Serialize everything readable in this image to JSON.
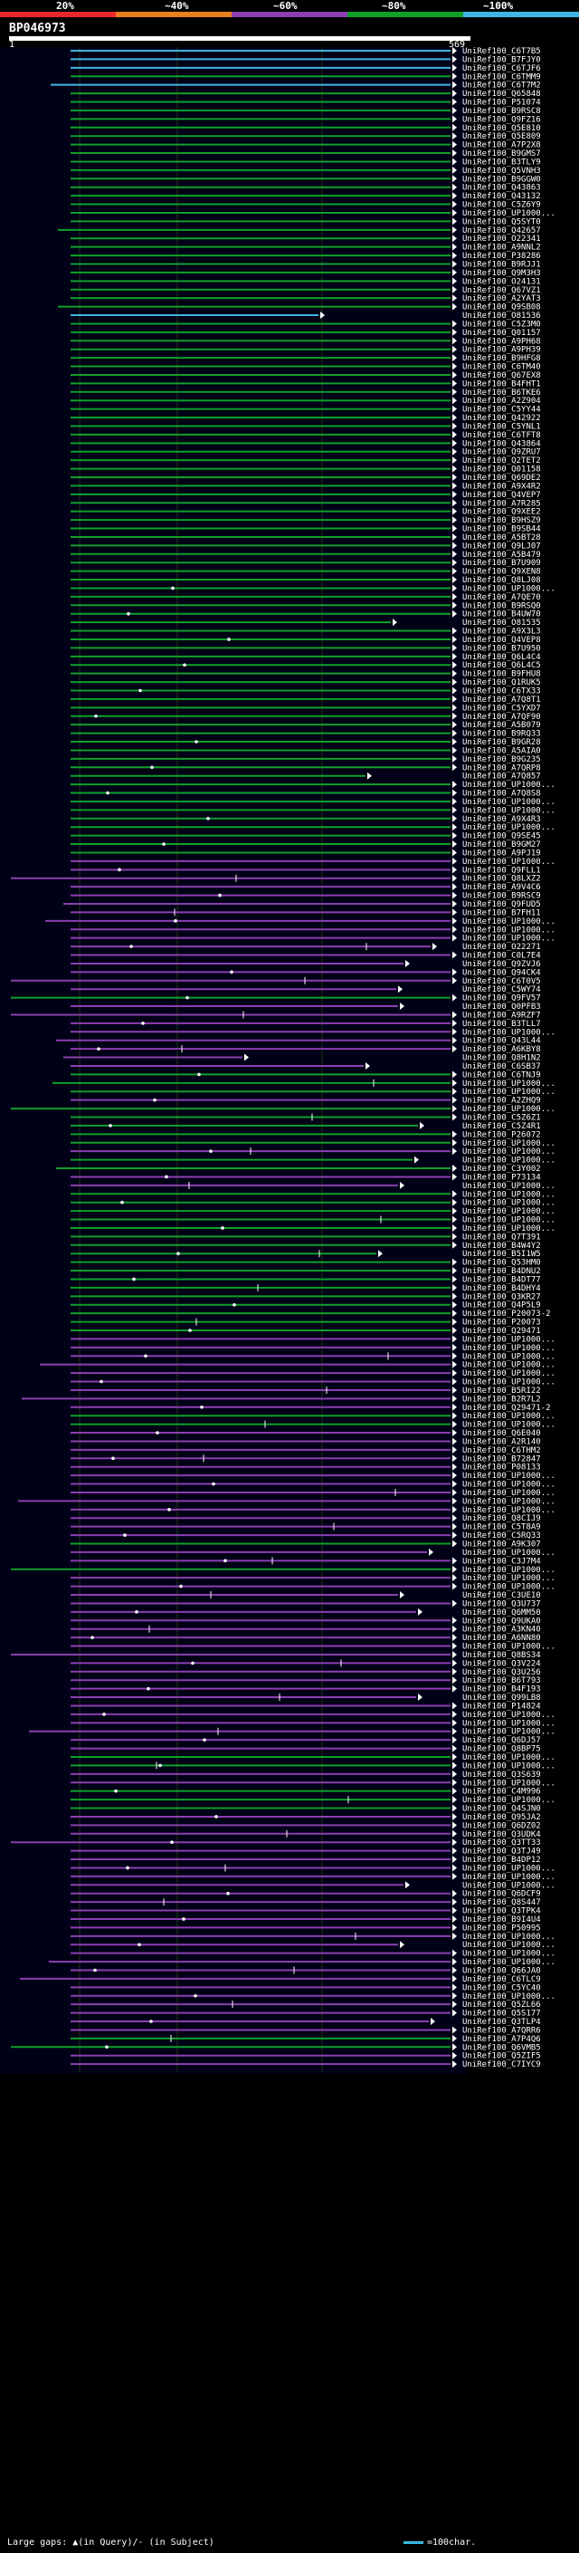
{
  "legend": {
    "labels": [
      "20%",
      "~40%",
      "~60%",
      "~80%",
      "~100%"
    ],
    "colors": [
      "#e8272d",
      "#e7801d",
      "#8b3fb0",
      "#10a02a",
      "#3fb6e4"
    ]
  },
  "query": {
    "title": "BP046973",
    "start": "1",
    "end": "569"
  },
  "hits": [
    "UniRef100_C6T7B5",
    "UniRef100_B7FJY0",
    "UniRef100_C6TJF6",
    "UniRef100_C6TMM9",
    "UniRef100_C6T7M2",
    "UniRef100_Q65848",
    "UniRef100_P51074",
    "UniRef100_B9RSC8",
    "UniRef100_Q9FZ16",
    "UniRef100_Q5E810",
    "UniRef100_Q5E809",
    "UniRef100_A7P2X8",
    "UniRef100_B9GMS7",
    "UniRef100_B3TLY9",
    "UniRef100_Q5VNH3",
    "UniRef100_B9GGW0",
    "UniRef100_Q43863",
    "UniRef100_Q43132",
    "UniRef100_C5Z6Y9",
    "UniRef100_UP1000...",
    "UniRef100_Q5SYT0",
    "UniRef100_Q42657",
    "UniRef100_O22341",
    "UniRef100_A9NNL2",
    "UniRef100_P38286",
    "UniRef100_B9RJJ1",
    "UniRef100_Q9M3H3",
    "UniRef100_O24131",
    "UniRef100_Q67VZ1",
    "UniRef100_A2YAT3",
    "UniRef100_Q9SB08",
    "UniRef100_O81536",
    "UniRef100_C5Z3M0",
    "UniRef100_Q01157",
    "UniRef100_A9PH68",
    "UniRef100_A9PH39",
    "UniRef100_B9HFG8",
    "UniRef100_C6TM40",
    "UniRef100_Q67EX8",
    "UniRef100_B4FHT1",
    "UniRef100_B6TKE6",
    "UniRef100_A2Z904",
    "UniRef100_C5YY44",
    "UniRef100_Q42922",
    "UniRef100_C5YNL1",
    "UniRef100_C6TFT8",
    "UniRef100_Q43864",
    "UniRef100_Q9ZRU7",
    "UniRef100_Q2TET2",
    "UniRef100_Q01158",
    "UniRef100_Q69DE2",
    "UniRef100_A9X4R2",
    "UniRef100_Q4VEP7",
    "UniRef100_A7R285",
    "UniRef100_Q9XEE2",
    "UniRef100_B9HSZ9",
    "UniRef100_B9SB44",
    "UniRef100_A5BT28",
    "UniRef100_Q9LJ07",
    "UniRef100_A5B479",
    "UniRef100_B7U909",
    "UniRef100_Q9XEN8",
    "UniRef100_Q8LJ08",
    "UniRef100_UP1000...",
    "UniRef100_A7QE70",
    "UniRef100_B9RSQ0",
    "UniRef100_B4UW70",
    "UniRef100_O81535",
    "UniRef100_A9X3L3",
    "UniRef100_Q4VEP8",
    "UniRef100_B7U950",
    "UniRef100_Q6L4C4",
    "UniRef100_Q6L4C5",
    "UniRef100_B9FHU8",
    "UniRef100_Q1RUK5",
    "UniRef100_C6TX33",
    "UniRef100_A7Q8T1",
    "UniRef100_C5YXD7",
    "UniRef100_A7QF90",
    "UniRef100_A5B079",
    "UniRef100_B9RQ33",
    "UniRef100_B9GR28",
    "UniRef100_A5AIA0",
    "UniRef100_B9G235",
    "UniRef100_A7QRP8",
    "UniRef100_A7Q857",
    "UniRef100_UP1000...",
    "UniRef100_A7Q8S8",
    "UniRef100_UP1000...",
    "UniRef100_UP1000...",
    "UniRef100_A9X4R3",
    "UniRef100_UP1000...",
    "UniRef100_Q9SE45",
    "UniRef100_B9GM27",
    "UniRef100_A9PJ19",
    "UniRef100_UP1000...",
    "UniRef100_Q9FLL1",
    "UniRef100_Q8LXZ2",
    "UniRef100_A9V4C6",
    "UniRef100_B9RSC9",
    "UniRef100_Q9FUD5",
    "UniRef100_B7FH11",
    "UniRef100_UP1000...",
    "UniRef100_UP1000...",
    "UniRef100_UP1000...",
    "UniRef100_O22271",
    "UniRef100_C0L7E4",
    "UniRef100_Q9ZVJ6",
    "UniRef100_Q94CK4",
    "UniRef100_C6T0V5",
    "UniRef100_C5WY74",
    "UniRef100_Q9FV57",
    "UniRef100_Q0PFB3",
    "UniRef100_A9RZF7",
    "UniRef100_B3TLL7",
    "UniRef100_UP1000...",
    "UniRef100_Q43L44",
    "UniRef100_A6KBY8",
    "UniRef100_Q8H1N2",
    "UniRef100_C6SB37",
    "UniRef100_C6TNJ9",
    "UniRef100_UP1000...",
    "UniRef100_UP1000...",
    "UniRef100_A2ZHQ9",
    "UniRef100_UP1000...",
    "UniRef100_C5Z6Z1",
    "UniRef100_C5Z4R1",
    "UniRef100_P26072",
    "UniRef100_UP1000...",
    "UniRef100_UP1000...",
    "UniRef100_UP1000...",
    "UniRef100_C3Y002",
    "UniRef100_P73134",
    "UniRef100_UP1000...",
    "UniRef100_UP1000...",
    "UniRef100_UP1000...",
    "UniRef100_UP1000...",
    "UniRef100_UP1000...",
    "UniRef100_UP1000...",
    "UniRef100_Q7T391",
    "UniRef100_B4W4Y2",
    "UniRef100_B5I1W5",
    "UniRef100_Q53HM0",
    "UniRef100_B4DNU2",
    "UniRef100_B4DT77",
    "UniRef100_B4DHY4",
    "UniRef100_Q3KR27",
    "UniRef100_Q4P5L9",
    "UniRef100_P20073-2",
    "UniRef100_P20073",
    "UniRef100_Q29471",
    "UniRef100_UP1000...",
    "UniRef100_UP1000...",
    "UniRef100_UP1000...",
    "UniRef100_UP1000...",
    "UniRef100_UP1000...",
    "UniRef100_UP1000...",
    "UniRef100_B5RI22",
    "UniRef100_B2R7L2",
    "UniRef100_Q29471-2",
    "UniRef100_UP1000...",
    "UniRef100_UP1000...",
    "UniRef100_Q6E040",
    "UniRef100_A2R140",
    "UniRef100_C6THM2",
    "UniRef100_B72847",
    "UniRef100_P08133",
    "UniRef100_UP1000...",
    "UniRef100_UP1000...",
    "UniRef100_UP1000...",
    "UniRef100_UP1000...",
    "UniRef100_UP1000...",
    "UniRef100_Q8CIJ9",
    "UniRef100_C5T8A9",
    "UniRef100_C5RQ33",
    "UniRef100_A9K307",
    "UniRef100_UP1000...",
    "UniRef100_C3J7M4",
    "UniRef100_UP1000...",
    "UniRef100_UP1000...",
    "UniRef100_UP1000...",
    "UniRef100_C3UE10",
    "UniRef100_Q3U737",
    "UniRef100_Q6MM50",
    "UniRef100_Q9UKA0",
    "UniRef100_A3KN40",
    "UniRef100_A6NN80",
    "UniRef100_UP1000...",
    "UniRef100_Q8BS34",
    "UniRef100_Q3V224",
    "UniRef100_Q3U256",
    "UniRef100_B6T793",
    "UniRef100_B4F193",
    "UniRef100_Q99LB8",
    "UniRef100_P14824",
    "UniRef100_UP1000...",
    "UniRef100_UP1000...",
    "UniRef100_UP1000...",
    "UniRef100_Q6DJ57",
    "UniRef100_Q8BP75",
    "UniRef100_UP1000...",
    "UniRef100_UP1000...",
    "UniRef100_Q3S639",
    "UniRef100_UP1000...",
    "UniRef100_C4M996",
    "UniRef100_UP1000...",
    "UniRef100_Q4SJN0",
    "UniRef100_Q95JA2",
    "UniRef100_Q6DZ02",
    "UniRef100_Q3UDK4",
    "UniRef100_Q3TT33",
    "UniRef100_Q3TJ49",
    "UniRef100_B4DP12",
    "UniRef100_UP1000...",
    "UniRef100_UP1000...",
    "UniRef100_UP1000...",
    "UniRef100_Q6DCF9",
    "UniRef100_Q8S447",
    "UniRef100_Q3TPK4",
    "UniRef100_B9I4U4",
    "UniRef100_P50995",
    "UniRef100_UP1000...",
    "UniRef100_UP1000...",
    "UniRef100_UP1000...",
    "UniRef100_UP1000...",
    "UniRef100_Q66JA0",
    "UniRef100_C6TLC9",
    "UniRef100_C5YC40",
    "UniRef100_UP1000...",
    "UniRef100_Q5ZL66",
    "UniRef100_Q5S177",
    "UniRef100_Q3TLP4",
    "UniRef100_A7QRR6",
    "UniRef100_A7P4Q6",
    "UniRef100_Q6VMB5",
    "UniRef100_Q5ZIF5",
    "UniRef100_C7IYC9"
  ],
  "footer": {
    "large_gaps": "Large gaps: ▲(in Query)/- (in Subject)",
    "scale": "=100char."
  }
}
